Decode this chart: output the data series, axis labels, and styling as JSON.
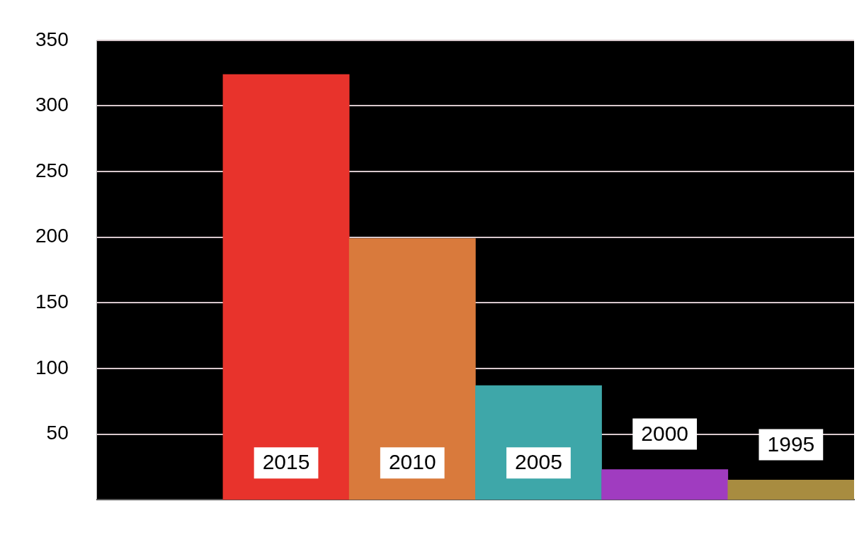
{
  "chart_data": {
    "type": "bar",
    "categories": [
      null,
      "2015",
      "2010",
      "2005",
      "2000",
      "1995"
    ],
    "values": [
      null,
      324,
      199,
      87,
      23,
      15
    ],
    "colors": [
      "#000000",
      "#e8332c",
      "#d97a3c",
      "#3ea7a9",
      "#a03cc0",
      "#a88c40"
    ],
    "ylim": [
      0,
      350
    ],
    "yticks": [
      50,
      100,
      150,
      200,
      250,
      300,
      350
    ],
    "grid": "y",
    "legend": false,
    "tick_labels": "y"
  }
}
